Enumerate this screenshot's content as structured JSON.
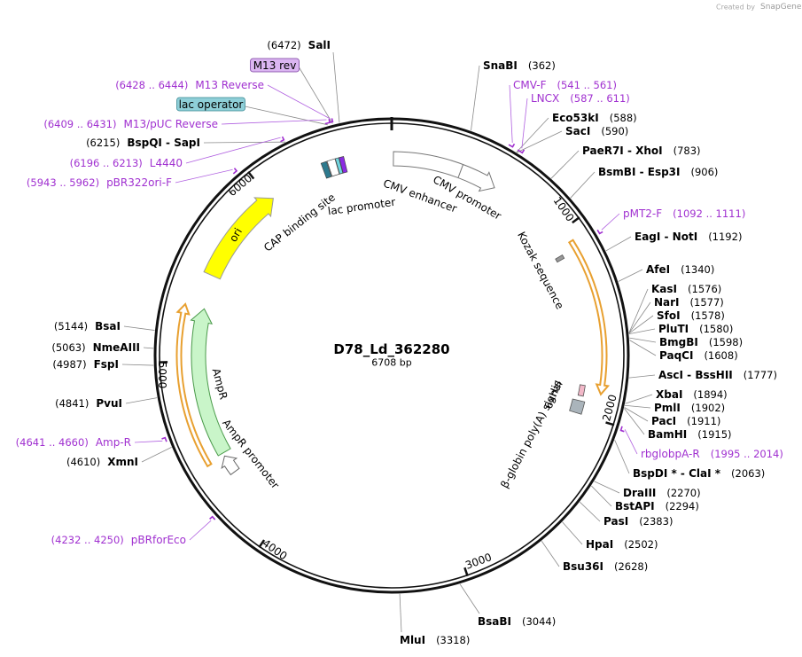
{
  "header": {
    "credit": "Created by",
    "brand": "SnapGene"
  },
  "plasmid": {
    "name": "D78_Ld_362280",
    "size": "6708 bp"
  },
  "scale_ticks": [
    "1000",
    "2000",
    "3000",
    "4000",
    "5000",
    "6000"
  ],
  "enzymes": [
    {
      "name": "SalI",
      "position": "(6472)"
    },
    {
      "name": "SnaBI",
      "position": "(362)"
    },
    {
      "name": "Eco53kI",
      "position": "(588)"
    },
    {
      "name": "SacI",
      "position": "(590)"
    },
    {
      "name": "PaeR7I - XhoI",
      "position": "(783)"
    },
    {
      "name": "BsmBI - Esp3I",
      "position": "(906)"
    },
    {
      "name": "EagI - NotI",
      "position": "(1192)"
    },
    {
      "name": "AfeI",
      "position": "(1340)"
    },
    {
      "name": "KasI",
      "position": "(1576)"
    },
    {
      "name": "NarI",
      "position": "(1577)"
    },
    {
      "name": "SfoI",
      "position": "(1578)"
    },
    {
      "name": "PluTI",
      "position": "(1580)"
    },
    {
      "name": "BmgBI",
      "position": "(1598)"
    },
    {
      "name": "PaqCI",
      "position": "(1608)"
    },
    {
      "name": "AscI - BssHII",
      "position": "(1777)"
    },
    {
      "name": "XbaI",
      "position": "(1894)"
    },
    {
      "name": "PmlI",
      "position": "(1902)"
    },
    {
      "name": "PacI",
      "position": "(1911)"
    },
    {
      "name": "BamHI",
      "position": "(1915)"
    },
    {
      "name": "BspDI * - ClaI *",
      "position": "(2063)"
    },
    {
      "name": "DraIII",
      "position": "(2270)"
    },
    {
      "name": "BstAPI",
      "position": "(2294)"
    },
    {
      "name": "PasI",
      "position": "(2383)"
    },
    {
      "name": "HpaI",
      "position": "(2502)"
    },
    {
      "name": "Bsu36I",
      "position": "(2628)"
    },
    {
      "name": "BsaBI",
      "position": "(3044)"
    },
    {
      "name": "MluI",
      "position": "(3318)"
    },
    {
      "name": "XmnI",
      "position": "(4610)"
    },
    {
      "name": "PvuI",
      "position": "(4841)"
    },
    {
      "name": "FspI",
      "position": "(4987)"
    },
    {
      "name": "NmeAIII",
      "position": "(5063)"
    },
    {
      "name": "BsaI",
      "position": "(5144)"
    },
    {
      "name": "BspQI - SapI",
      "position": "(6215)"
    }
  ],
  "primers": [
    {
      "name": "M13 Reverse",
      "range": "(6428 .. 6444)"
    },
    {
      "name": "M13/pUC Reverse",
      "range": "(6409 .. 6431)"
    },
    {
      "name": "L4440",
      "range": "(6196 .. 6213)"
    },
    {
      "name": "pBR322ori-F",
      "range": "(5943 .. 5962)"
    },
    {
      "name": "Amp-R",
      "range": "(4641 .. 4660)"
    },
    {
      "name": "pBRforEco",
      "range": "(4232 .. 4250)"
    },
    {
      "name": "CMV-F",
      "range": "(541 .. 561)"
    },
    {
      "name": "LNCX",
      "range": "(587 .. 611)"
    },
    {
      "name": "pMT2-F",
      "range": "(1092 .. 1111)"
    },
    {
      "name": "rbglobpA-R",
      "range": "(1995 .. 2014)"
    }
  ],
  "features": [
    "M13 rev",
    "lac operator",
    "lac promoter",
    "CAP binding site",
    "CMV enhancer",
    "CMV promoter",
    "Kozak sequence",
    "6xHis",
    "β-globin poly(A) signal",
    "AmpR",
    "AmpR promoter",
    "ori"
  ]
}
